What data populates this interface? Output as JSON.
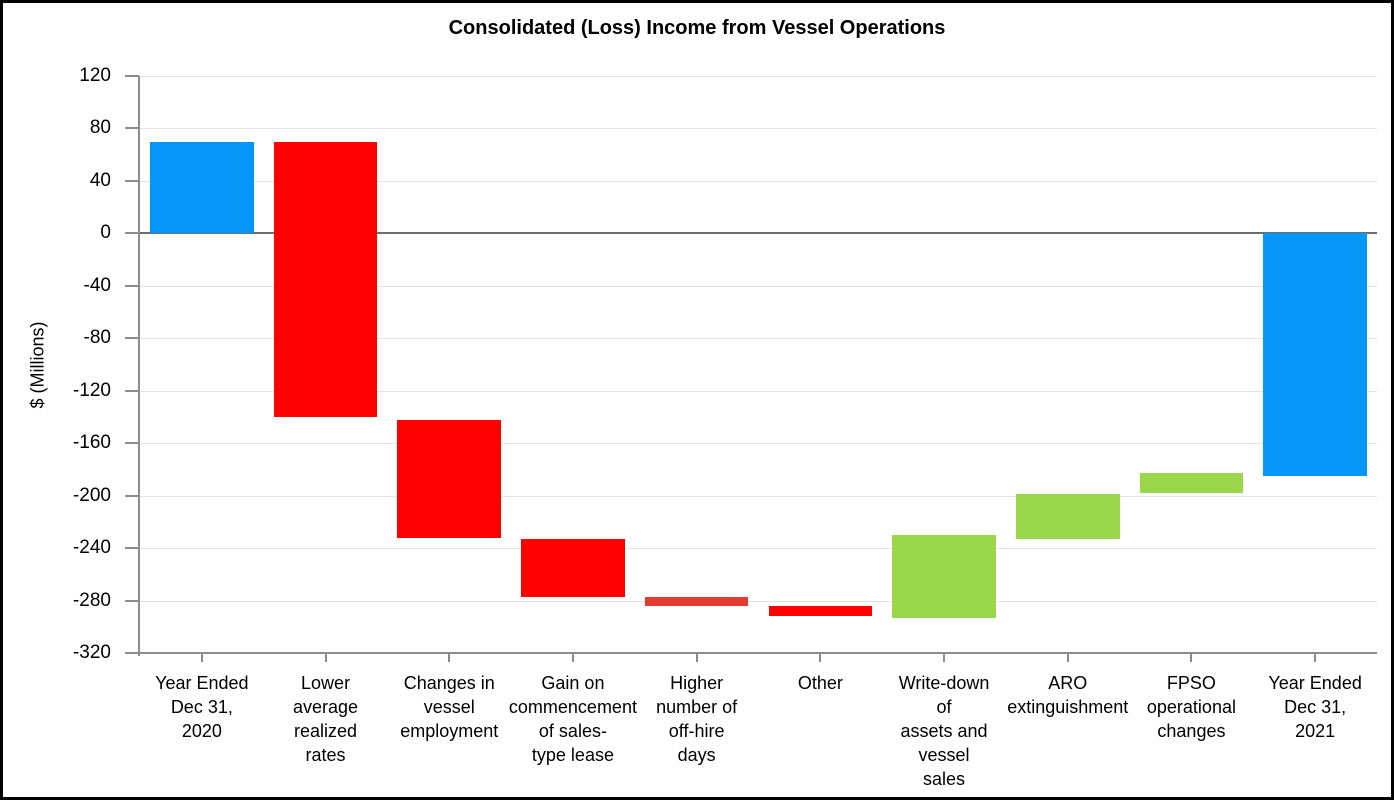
{
  "chart_data": {
    "type": "bar",
    "subtype": "waterfall",
    "title": "Consolidated (Loss) Income from Vessel Operations",
    "ylabel": "$ (Millions)",
    "xlabel": "",
    "ylim": [
      -320,
      120
    ],
    "ytick_interval": 40,
    "yticks": [
      120,
      80,
      40,
      0,
      -40,
      -80,
      -120,
      -160,
      -200,
      -240,
      -280,
      -320
    ],
    "grid": true,
    "legend": "none",
    "axis_color": "#8c8c8c",
    "gridline_color": "#e3e3e3",
    "zero_line_color": "#6d6d6d",
    "colors": {
      "total": "#0596F7",
      "decrease": "#FE0100",
      "decrease_alt": "#E33B32",
      "increase": "#9AD74A"
    },
    "bars": [
      {
        "label": "Year Ended Dec 31, 2020",
        "label_lines": [
          "Year Ended",
          "Dec 31,",
          "2020"
        ],
        "start": 0,
        "end": 70,
        "change": 70,
        "role": "total",
        "color": "#0596F7"
      },
      {
        "label": "Lower average realized rates",
        "label_lines": [
          "Lower",
          "average",
          "realized",
          "rates"
        ],
        "start": 70,
        "end": -140,
        "change": -210,
        "role": "decrease",
        "color": "#FE0100"
      },
      {
        "label": "Changes in vessel employment",
        "label_lines": [
          "Changes in",
          "vessel",
          "employment"
        ],
        "start": -142,
        "end": -232,
        "change": -90,
        "role": "decrease",
        "color": "#FE0100"
      },
      {
        "label": "Gain on commencement of sales-type lease",
        "label_lines": [
          "Gain on",
          "commencement",
          "of sales-",
          "type lease"
        ],
        "start": -233,
        "end": -277,
        "change": -44,
        "role": "decrease",
        "color": "#FE0100"
      },
      {
        "label": "Higher number of off-hire days",
        "label_lines": [
          "Higher",
          "number of",
          "off-hire",
          "days"
        ],
        "start": -277,
        "end": -284,
        "change": -7,
        "role": "decrease",
        "color": "#E33B32"
      },
      {
        "label": "Other",
        "label_lines": [
          "Other"
        ],
        "start": -284,
        "end": -292,
        "change": -8,
        "role": "decrease",
        "color": "#FE0100"
      },
      {
        "label": "Write-down of assets and vessel sales",
        "label_lines": [
          "Write-down",
          "of",
          "assets and",
          "vessel",
          "sales"
        ],
        "start": -293,
        "end": -230,
        "change": 63,
        "role": "increase",
        "color": "#9AD74A"
      },
      {
        "label": "ARO extinguishment",
        "label_lines": [
          "ARO",
          "extinguishment"
        ],
        "start": -233,
        "end": -199,
        "change": 34,
        "role": "increase",
        "color": "#9AD74A"
      },
      {
        "label": "FPSO operational changes",
        "label_lines": [
          "FPSO",
          "operational",
          "changes"
        ],
        "start": -198,
        "end": -183,
        "change": 15,
        "role": "increase",
        "color": "#9AD74A"
      },
      {
        "label": "Year Ended Dec 31, 2021",
        "label_lines": [
          "Year Ended",
          "Dec 31,",
          "2021"
        ],
        "start": 0,
        "end": -185,
        "change": -185,
        "role": "total",
        "color": "#0596F7"
      }
    ]
  }
}
